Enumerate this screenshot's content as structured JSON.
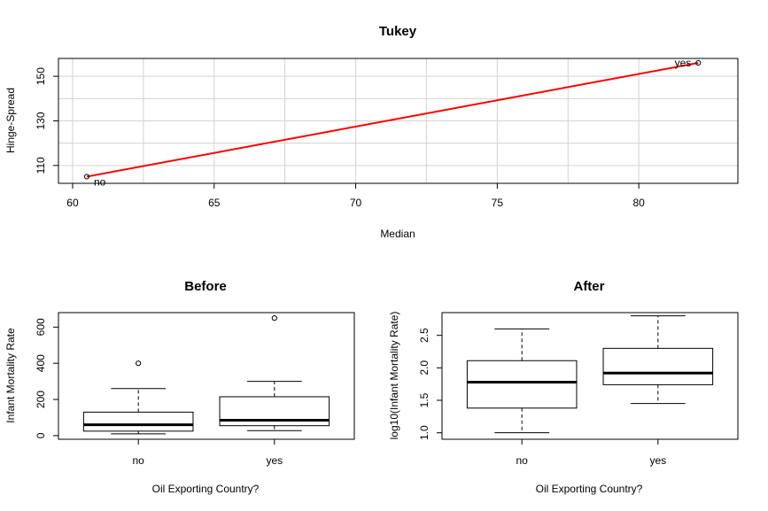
{
  "chart_data": [
    {
      "type": "scatter",
      "title": "Tukey",
      "xlabel": "Median",
      "ylabel": "Hinge-Spread",
      "xlim": [
        59.5,
        83.5
      ],
      "ylim": [
        102,
        158
      ],
      "xticks": [
        60,
        65,
        70,
        75,
        80
      ],
      "yticks": [
        110,
        130,
        150
      ],
      "grid": true,
      "points": [
        {
          "x": 60.5,
          "y": 105,
          "label": "no"
        },
        {
          "x": 82.1,
          "y": 156,
          "label": "yes"
        }
      ],
      "fit_line": {
        "x": [
          60.5,
          82.1
        ],
        "y": [
          105,
          156
        ],
        "color": "#ff0000"
      },
      "point_color": "#000000"
    },
    {
      "type": "box",
      "title": "Before",
      "xlabel": "Oil Exporting Country?",
      "ylabel": "Infant Mortality Rate",
      "categories": [
        "no",
        "yes"
      ],
      "ylim": [
        -20,
        680
      ],
      "yticks": [
        0,
        200,
        400,
        600
      ],
      "boxes": [
        {
          "lower": 10,
          "q1": 25,
          "median": 60,
          "q3": 130,
          "upper": 260,
          "outliers": [
            400
          ]
        },
        {
          "lower": 28,
          "q1": 55,
          "median": 85,
          "q3": 215,
          "upper": 300,
          "outliers": [
            650
          ]
        }
      ]
    },
    {
      "type": "box",
      "title": "After",
      "xlabel": "Oil Exporting Country?",
      "ylabel": "log10(Infant Mortality Rate)",
      "categories": [
        "no",
        "yes"
      ],
      "ylim": [
        0.9,
        2.85
      ],
      "yticks": [
        1.0,
        1.5,
        2.0,
        2.5
      ],
      "ytick_labels": [
        "1.0",
        "1.5",
        "2.0",
        "2.5"
      ],
      "boxes": [
        {
          "lower": 1.0,
          "q1": 1.38,
          "median": 1.78,
          "q3": 2.11,
          "upper": 2.6,
          "outliers": []
        },
        {
          "lower": 1.45,
          "q1": 1.74,
          "median": 1.92,
          "q3": 2.3,
          "upper": 2.8,
          "outliers": []
        }
      ]
    }
  ]
}
